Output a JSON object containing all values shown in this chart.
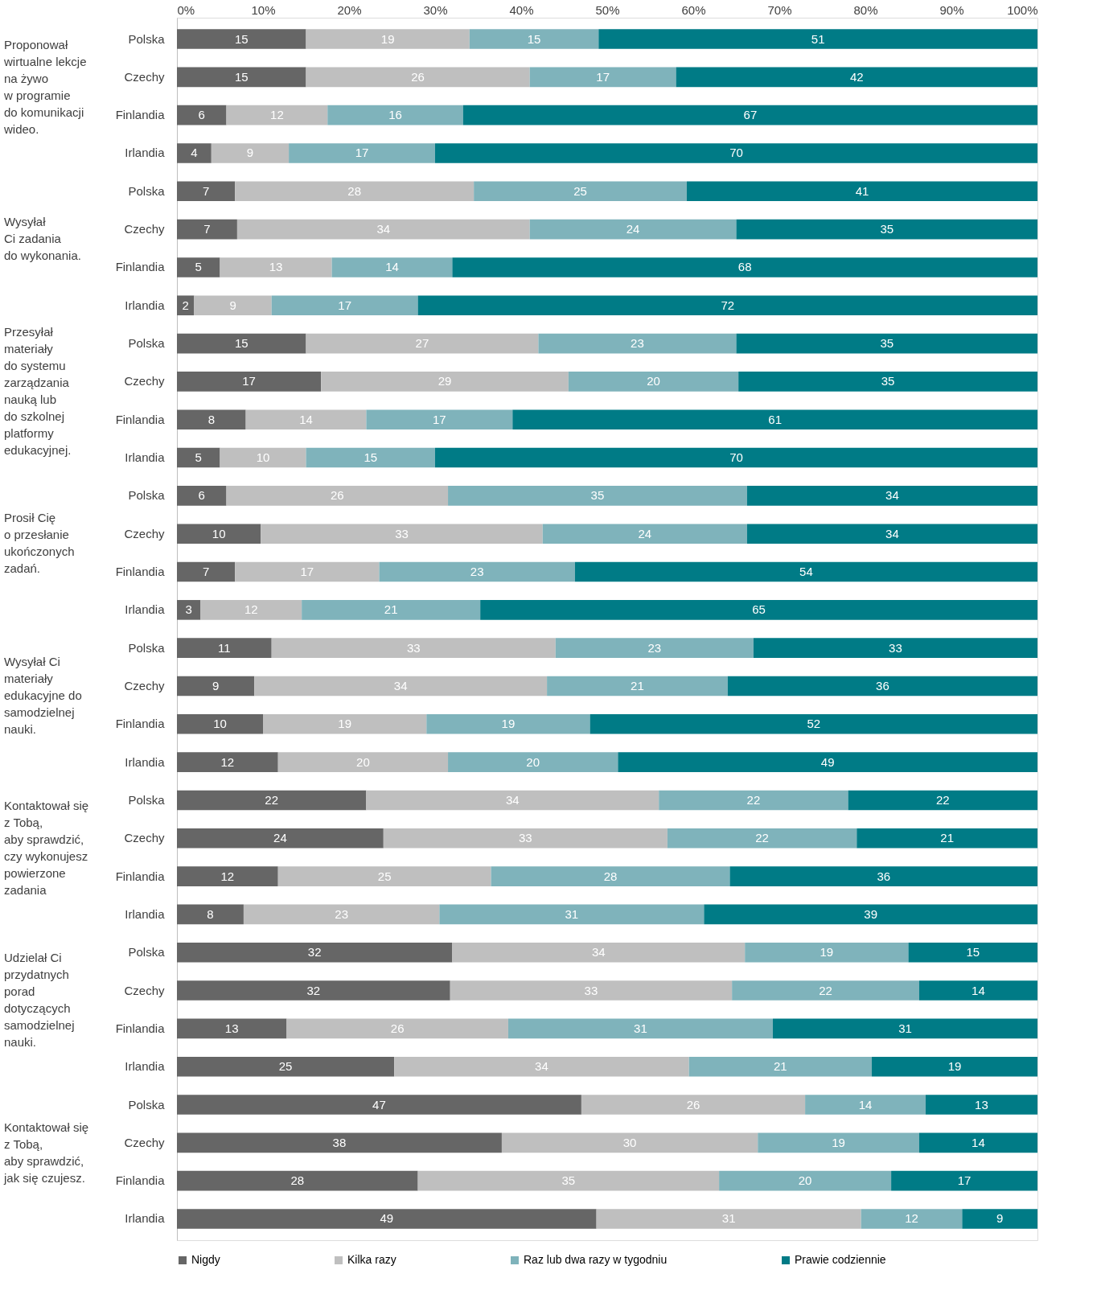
{
  "chart_data": {
    "type": "bar",
    "orientation": "horizontal",
    "stacked": true,
    "categories": [
      "Polska",
      "Czechy",
      "Finlandia",
      "Irlandia",
      "Polska",
      "Czechy",
      "Finlandia",
      "Irlandia",
      "Polska",
      "Czechy",
      "Finlandia",
      "Irlandia",
      "Polska",
      "Czechy",
      "Finlandia",
      "Irlandia",
      "Polska",
      "Czechy",
      "Finlandia",
      "Irlandia",
      "Polska",
      "Czechy",
      "Finlandia",
      "Irlandia",
      "Polska",
      "Czechy",
      "Finlandia",
      "Irlandia",
      "Polska",
      "Czechy",
      "Finlandia",
      "Irlandia"
    ],
    "annotations": [
      "Proponował\nwirtualne lekcje\nna żywo\nw programie\ndo komunikacji\nwideo.",
      "Wysyłał\nCi zadania\ndo wykonania.",
      "Przesyłał\nmateriały\ndo systemu\nzarządzania\nnauką lub\ndo szkolnej\nplatformy\nedukacyjnej.",
      "Prosił Cię\no przesłanie\nukończonych\nzadań.",
      "Wysyłał Ci\nmateriały\nedukacyjne do\nsamodzielnej\nnauki.",
      "Kontaktował się\nz Tobą,\naby sprawdzić,\nczy wykonujesz\npowierzone\nzadania",
      "Udzielał Ci\nprzydatnych\nporad\ndotyczących\nsamodzielnej\nnauki.",
      "Kontaktował się\nz Tobą,\naby sprawdzić,\njak się czujesz."
    ],
    "xlim": [
      0,
      100
    ],
    "xticks": [
      {
        "value": 0,
        "label": "0%"
      },
      {
        "value": 10,
        "label": "10%"
      },
      {
        "value": 20,
        "label": "20%"
      },
      {
        "value": 30,
        "label": "30%"
      },
      {
        "value": 40,
        "label": "40%"
      },
      {
        "value": 50,
        "label": "50%"
      },
      {
        "value": 60,
        "label": "60%"
      },
      {
        "value": 70,
        "label": "70%"
      },
      {
        "value": 80,
        "label": "80%"
      },
      {
        "value": 90,
        "label": "90%"
      },
      {
        "value": 100,
        "label": "100%"
      }
    ],
    "legend": "bottom",
    "grid": false,
    "series": [
      {
        "name": "Nigdy",
        "color": "#666666",
        "values": [
          15,
          15,
          5.75,
          4,
          6.75,
          7,
          5,
          2,
          15,
          16.75,
          8,
          5,
          5.75,
          9.75,
          6.75,
          2.75,
          11,
          9,
          10,
          11.75,
          22,
          24,
          11.75,
          7.75,
          32,
          31.75,
          12.75,
          25.25,
          47,
          37.75,
          28,
          48.75
        ],
        "value_labels": [
          "15",
          "15",
          "6",
          "4",
          "7",
          "7",
          "5",
          "2",
          "15",
          "17",
          "8",
          "5",
          "6",
          "10",
          "7",
          "3",
          "11",
          "9",
          "10",
          "12",
          "22",
          "24",
          "12",
          "8",
          "32",
          "32",
          "13",
          "25",
          "47",
          "38",
          "28",
          "49"
        ]
      },
      {
        "name": "Kilka razy",
        "color": "#bfbfbf",
        "values": [
          19,
          26,
          11.75,
          9,
          27.75,
          34,
          13,
          9,
          27,
          28.75,
          14,
          10,
          25.75,
          32.75,
          16.75,
          11.75,
          33,
          34,
          19,
          19.75,
          34,
          33,
          24.75,
          22.75,
          34,
          32.75,
          25.75,
          34.25,
          26,
          29.75,
          35,
          30.75
        ],
        "value_labels": [
          "19",
          "26",
          "12",
          "9",
          "28",
          "34",
          "13",
          "9",
          "27",
          "29",
          "14",
          "10",
          "26",
          "33",
          "17",
          "12",
          "33",
          "34",
          "19",
          "20",
          "34",
          "33",
          "25",
          "23",
          "34",
          "33",
          "26",
          "34",
          "26",
          "30",
          "35",
          "31"
        ]
      },
      {
        "name": "Raz lub dwa razy w tygodniu",
        "color": "#7fb3bb",
        "values": [
          15,
          17,
          15.75,
          17,
          24.75,
          24,
          14,
          17,
          23,
          19.75,
          17,
          15,
          34.75,
          23.75,
          22.75,
          20.75,
          23,
          21,
          19,
          19.75,
          22,
          22,
          27.75,
          30.75,
          19,
          21.75,
          30.75,
          21.25,
          14,
          18.75,
          20,
          11.75
        ],
        "value_labels": [
          "15",
          "17",
          "16",
          "17",
          "25",
          "24",
          "14",
          "17",
          "23",
          "20",
          "17",
          "15",
          "35",
          "24",
          "23",
          "21",
          "23",
          "21",
          "19",
          "20",
          "22",
          "22",
          "28",
          "31",
          "19",
          "22",
          "31",
          "21",
          "14",
          "19",
          "20",
          "12"
        ]
      },
      {
        "name": "Prawie codziennie",
        "color": "#007b86",
        "values": [
          51,
          42,
          66.75,
          70,
          40.75,
          35,
          68,
          72,
          35,
          34.75,
          61,
          70,
          33.75,
          33.75,
          53.75,
          64.75,
          33,
          36,
          52,
          48.75,
          22,
          21,
          35.75,
          38.75,
          15,
          13.75,
          30.75,
          19.25,
          13,
          13.75,
          17,
          8.75
        ],
        "value_labels": [
          "51",
          "42",
          "67",
          "70",
          "41",
          "35",
          "68",
          "72",
          "35",
          "35",
          "61",
          "70",
          "34",
          "34",
          "54",
          "65",
          "33",
          "36",
          "52",
          "49",
          "22",
          "21",
          "36",
          "39",
          "15",
          "14",
          "31",
          "19",
          "13",
          "14",
          "17",
          "9"
        ]
      }
    ]
  }
}
